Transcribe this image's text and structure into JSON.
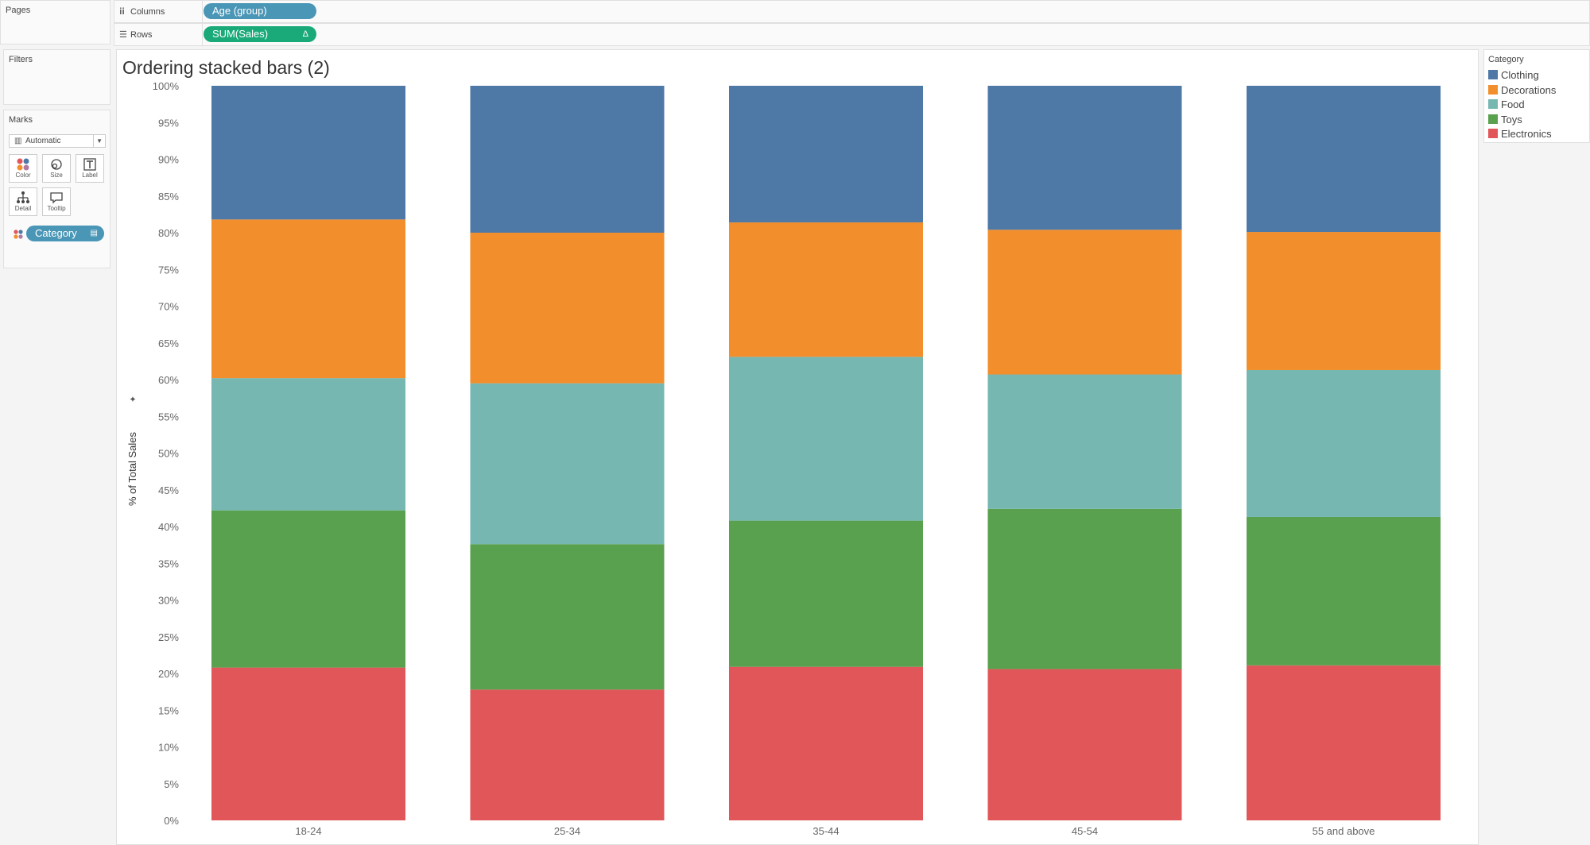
{
  "panels": {
    "pages": "Pages",
    "filters": "Filters",
    "marks": "Marks"
  },
  "shelves": {
    "columns_label": "Columns",
    "columns_pill": "Age (group)",
    "rows_label": "Rows",
    "rows_pill": "SUM(Sales)",
    "rows_pill_icon": "Δ"
  },
  "marks": {
    "type": "Automatic",
    "buttons": [
      "Color",
      "Size",
      "Label",
      "Detail",
      "Tooltip"
    ],
    "category_pill": "Category"
  },
  "colors": {
    "Clothing": "#4e79a7",
    "Decorations": "#f28e2b",
    "Food": "#76b7b2",
    "Toys": "#59a14f",
    "Electronics": "#e15759",
    "pill_teal": "#4a96b6",
    "pill_green": "#1aaa79"
  },
  "legend": {
    "title": "Category",
    "items": [
      "Clothing",
      "Decorations",
      "Food",
      "Toys",
      "Electronics"
    ]
  },
  "chart_data": {
    "type": "bar",
    "stacked": true,
    "title": "Ordering stacked bars (2)",
    "xlabel": "",
    "ylabel": "% of Total Sales",
    "ylim": [
      0,
      100
    ],
    "yticks": [
      "0%",
      "5%",
      "10%",
      "15%",
      "20%",
      "25%",
      "30%",
      "35%",
      "40%",
      "45%",
      "50%",
      "55%",
      "60%",
      "65%",
      "70%",
      "75%",
      "80%",
      "85%",
      "90%",
      "95%",
      "100%"
    ],
    "categories": [
      "18-24",
      "25-34",
      "35-44",
      "45-54",
      "55 and above"
    ],
    "series": [
      {
        "name": "Electronics",
        "values": [
          20.8,
          17.8,
          20.9,
          20.6,
          21.1
        ]
      },
      {
        "name": "Toys",
        "values": [
          21.4,
          19.8,
          19.9,
          21.8,
          20.2
        ]
      },
      {
        "name": "Food",
        "values": [
          18.0,
          21.9,
          22.3,
          18.3,
          20.0
        ]
      },
      {
        "name": "Decorations",
        "values": [
          21.6,
          20.5,
          18.3,
          19.7,
          18.8
        ]
      },
      {
        "name": "Clothing",
        "values": [
          18.2,
          20.0,
          18.6,
          19.6,
          19.9
        ]
      }
    ],
    "grid": false,
    "legend_position": "right"
  }
}
